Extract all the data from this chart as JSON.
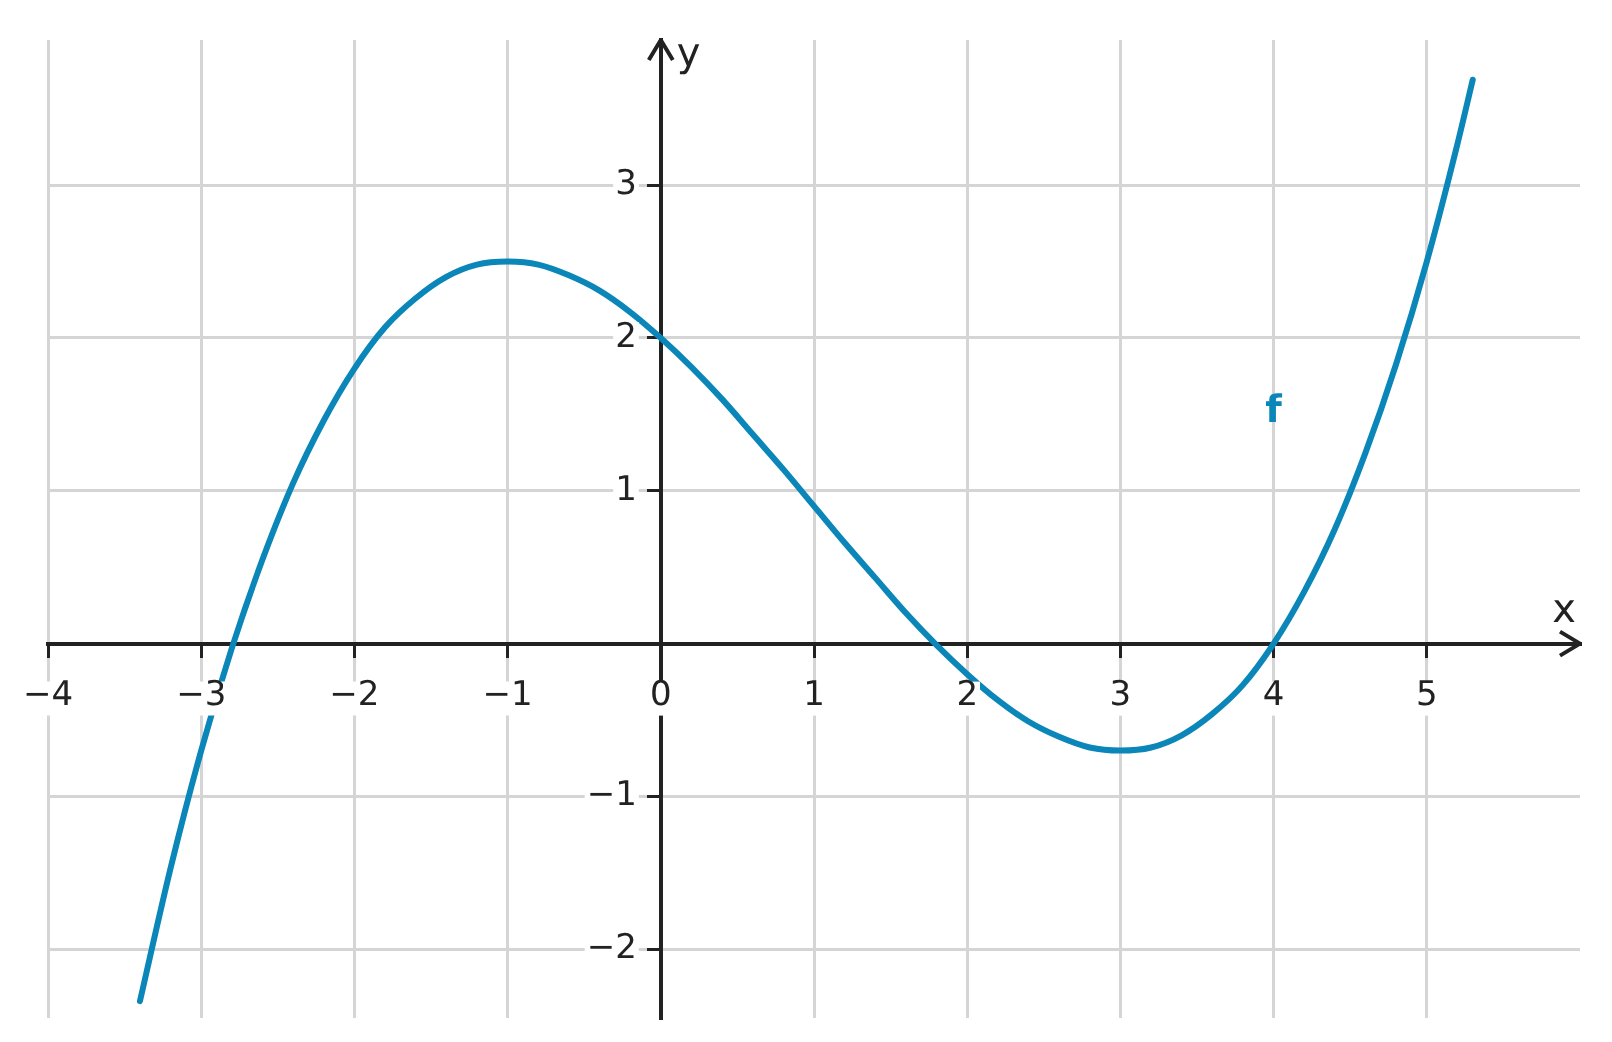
{
  "chart_data": {
    "type": "line",
    "xlabel": "x",
    "ylabel": "y",
    "xlim": [
      -4,
      6
    ],
    "ylim": [
      -2.45,
      3.95
    ],
    "xticks": [
      {
        "value": -4,
        "label": "−4"
      },
      {
        "value": -3,
        "label": "−3"
      },
      {
        "value": -2,
        "label": "−2"
      },
      {
        "value": -1,
        "label": "−1"
      },
      0,
      1,
      2,
      3,
      4,
      5
    ],
    "yticks": [
      {
        "value": -2,
        "label": "−2"
      },
      {
        "value": -1,
        "label": "−1"
      },
      1,
      2,
      3
    ],
    "grid": true,
    "legend": false,
    "marker": "none",
    "line_style": "solid",
    "series": [
      {
        "color": "#0a86b8",
        "x": [
          -3.4,
          -3.2,
          -3,
          -2.8,
          -2.6,
          -2.4,
          -2.2,
          -2,
          -1.8,
          -1.6,
          -1.4,
          -1.2,
          -1,
          -0.8,
          -0.6,
          -0.4,
          -0.2,
          0,
          0.2,
          0.4,
          0.6,
          0.8,
          1,
          1.2,
          1.4,
          1.6,
          1.8,
          2,
          2.2,
          2.4,
          2.6,
          2.8,
          3,
          3.2,
          3.4,
          3.6,
          3.8,
          4,
          4.2,
          4.4,
          4.6,
          4.8,
          5,
          5.2,
          5.3
        ],
        "values": [
          -2.34,
          -1.47,
          -0.7,
          -0.03,
          0.55,
          1.05,
          1.46,
          1.8,
          2.07,
          2.26,
          2.4,
          2.48,
          2.5,
          2.48,
          2.41,
          2.31,
          2.17,
          2,
          1.81,
          1.6,
          1.37,
          1.14,
          0.9,
          0.66,
          0.43,
          0.2,
          -0.01,
          -0.2,
          -0.37,
          -0.51,
          -0.61,
          -0.68,
          -0.7,
          -0.68,
          -0.6,
          -0.46,
          -0.27,
          0,
          0.34,
          0.75,
          1.25,
          1.83,
          2.5,
          3.27,
          3.69
        ]
      }
    ],
    "annotations": [
      "f"
    ]
  }
}
